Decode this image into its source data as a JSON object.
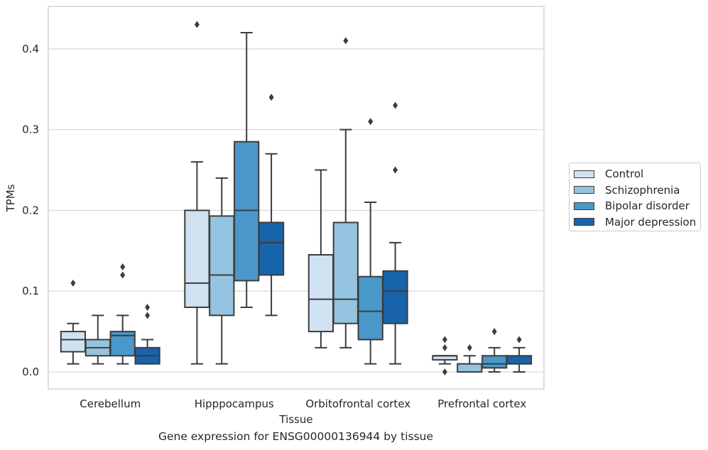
{
  "chart_data": {
    "type": "box",
    "xlabel": "Tissue",
    "ylabel": "TPMs",
    "ylim": [
      -0.021,
      0.453
    ],
    "yticks": [
      0.0,
      0.1,
      0.2,
      0.3,
      0.4
    ],
    "ytick_labels": [
      "0.0",
      "0.1",
      "0.2",
      "0.3",
      "0.4"
    ],
    "grid": "horizontal",
    "legend_position": "right, outside plot area",
    "categories": [
      "Cerebellum",
      "Hipppocampus",
      "Orbitofrontal cortex",
      "Prefrontal cortex"
    ],
    "series": [
      {
        "name": "Control",
        "color": "#d0e1f2",
        "boxes": [
          {
            "whislo": 0.01,
            "q1": 0.025,
            "med": 0.04,
            "q3": 0.05,
            "whishi": 0.06,
            "fliers": [
              0.11
            ]
          },
          {
            "whislo": 0.01,
            "q1": 0.08,
            "med": 0.11,
            "q3": 0.2,
            "whishi": 0.26,
            "fliers": [
              0.43
            ]
          },
          {
            "whislo": 0.03,
            "q1": 0.05,
            "med": 0.09,
            "q3": 0.145,
            "whishi": 0.25,
            "fliers": []
          },
          {
            "whislo": 0.01,
            "q1": 0.015,
            "med": 0.02,
            "q3": 0.02,
            "whishi": 0.02,
            "fliers": [
              0.0,
              0.03,
              0.04
            ]
          }
        ]
      },
      {
        "name": "Schizophrenia",
        "color": "#94c4df",
        "boxes": [
          {
            "whislo": 0.01,
            "q1": 0.02,
            "med": 0.03,
            "q3": 0.04,
            "whishi": 0.07,
            "fliers": []
          },
          {
            "whislo": 0.01,
            "q1": 0.07,
            "med": 0.12,
            "q3": 0.193,
            "whishi": 0.24,
            "fliers": []
          },
          {
            "whislo": 0.03,
            "q1": 0.06,
            "med": 0.09,
            "q3": 0.185,
            "whishi": 0.3,
            "fliers": [
              0.41
            ]
          },
          {
            "whislo": 0.0,
            "q1": 0.0,
            "med": 0.0,
            "q3": 0.01,
            "whishi": 0.02,
            "fliers": [
              0.03
            ]
          }
        ]
      },
      {
        "name": "Bipolar disorder",
        "color": "#4a98c9",
        "boxes": [
          {
            "whislo": 0.01,
            "q1": 0.02,
            "med": 0.045,
            "q3": 0.05,
            "whishi": 0.07,
            "fliers": [
              0.12,
              0.13
            ]
          },
          {
            "whislo": 0.08,
            "q1": 0.113,
            "med": 0.2,
            "q3": 0.285,
            "whishi": 0.42,
            "fliers": []
          },
          {
            "whislo": 0.01,
            "q1": 0.04,
            "med": 0.075,
            "q3": 0.118,
            "whishi": 0.21,
            "fliers": [
              0.31
            ]
          },
          {
            "whislo": 0.0,
            "q1": 0.005,
            "med": 0.01,
            "q3": 0.02,
            "whishi": 0.03,
            "fliers": [
              0.05
            ]
          }
        ]
      },
      {
        "name": "Major depression",
        "color": "#1764ab",
        "boxes": [
          {
            "whislo": 0.01,
            "q1": 0.01,
            "med": 0.02,
            "q3": 0.03,
            "whishi": 0.04,
            "fliers": [
              0.07,
              0.08
            ]
          },
          {
            "whislo": 0.07,
            "q1": 0.12,
            "med": 0.16,
            "q3": 0.185,
            "whishi": 0.27,
            "fliers": [
              0.34
            ]
          },
          {
            "whislo": 0.01,
            "q1": 0.06,
            "med": 0.1,
            "q3": 0.125,
            "whishi": 0.16,
            "fliers": [
              0.25,
              0.33
            ]
          },
          {
            "whislo": 0.0,
            "q1": 0.01,
            "med": 0.01,
            "q3": 0.02,
            "whishi": 0.03,
            "fliers": [
              0.04
            ]
          }
        ]
      }
    ]
  },
  "caption": "Gene expression for ENSG00000136944 by tissue"
}
